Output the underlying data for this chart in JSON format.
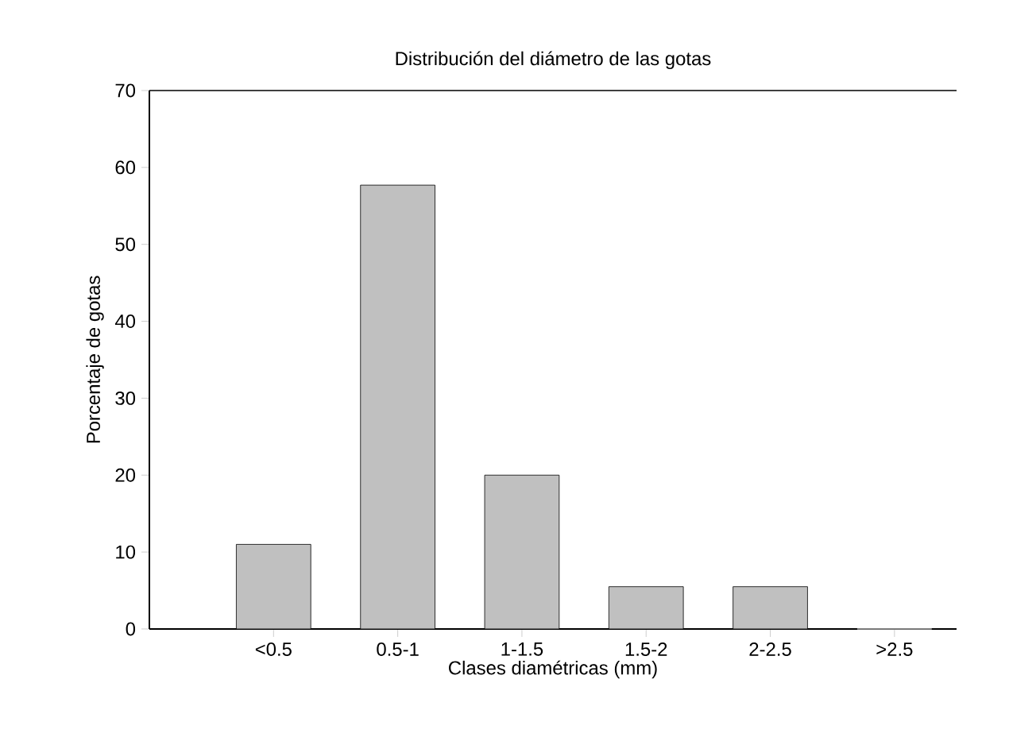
{
  "chart_data": {
    "type": "bar",
    "title": "Distribución del diámetro de las gotas",
    "xlabel": "Clases diamétricas (mm)",
    "ylabel": "Porcentaje de gotas",
    "categories": [
      "<0.5",
      "0.5-1",
      "1-1.5",
      "1.5-2",
      "2-2.5",
      ">2.5"
    ],
    "values": [
      11,
      57.7,
      20,
      5.5,
      5.5,
      0
    ],
    "color": "#c0c0c0",
    "ylim": [
      0,
      70
    ],
    "yticks": [
      0,
      10,
      20,
      30,
      40,
      50,
      60,
      70
    ],
    "grid": false
  }
}
